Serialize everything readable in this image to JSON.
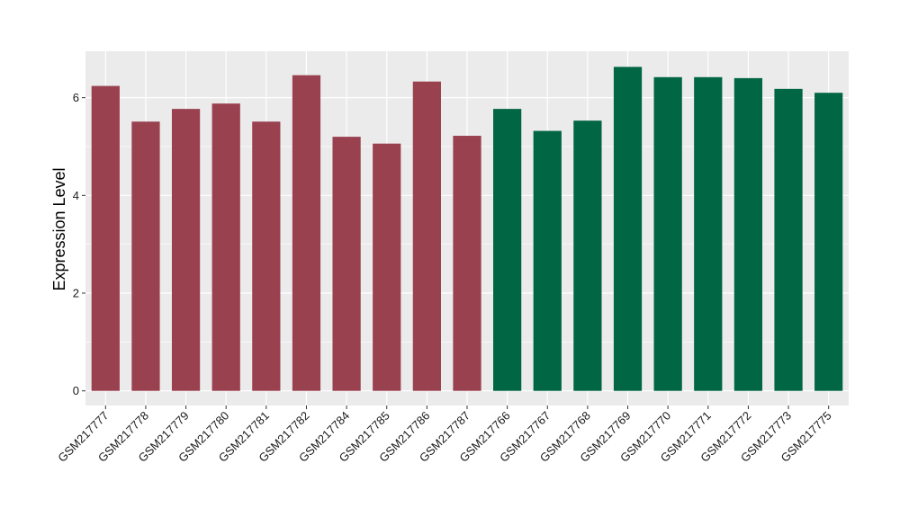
{
  "chart_data": {
    "type": "bar",
    "title": "",
    "xlabel": "",
    "ylabel": "Expression Level",
    "ylim": [
      -0.3,
      6.95
    ],
    "yticks": [
      0,
      2,
      4,
      6
    ],
    "grid": true,
    "legend": "none",
    "colors": {
      "panel": "#EBEBEB",
      "grid": "#FFFFFF"
    },
    "categories": [
      "GSM217777",
      "GSM217778",
      "GSM217779",
      "GSM217780",
      "GSM217781",
      "GSM217782",
      "GSM217784",
      "GSM217785",
      "GSM217786",
      "GSM217787",
      "GSM217766",
      "GSM217767",
      "GSM217768",
      "GSM217769",
      "GSM217770",
      "GSM217771",
      "GSM217772",
      "GSM217773",
      "GSM217775"
    ],
    "values": [
      6.24,
      5.51,
      5.77,
      5.88,
      5.51,
      6.46,
      5.2,
      5.06,
      6.33,
      5.22,
      5.77,
      5.32,
      5.53,
      6.63,
      6.42,
      6.42,
      6.4,
      6.18,
      6.1
    ],
    "bar_colors": [
      "#9A4150",
      "#9A4150",
      "#9A4150",
      "#9A4150",
      "#9A4150",
      "#9A4150",
      "#9A4150",
      "#9A4150",
      "#9A4150",
      "#9A4150",
      "#006644",
      "#006644",
      "#006644",
      "#006644",
      "#006644",
      "#006644",
      "#006644",
      "#006644",
      "#006644"
    ]
  }
}
